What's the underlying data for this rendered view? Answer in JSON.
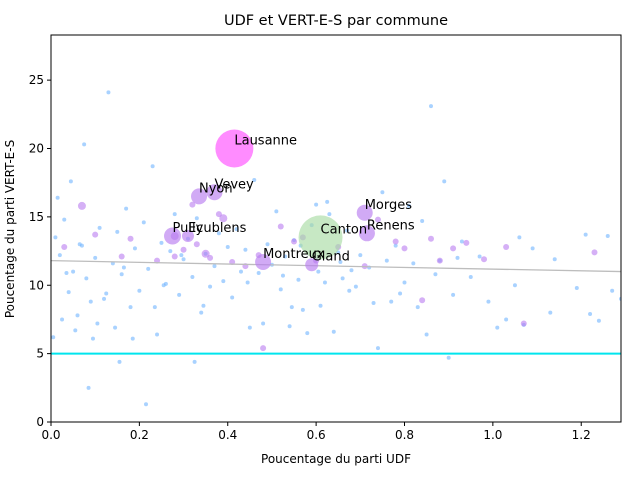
{
  "chart_data": {
    "type": "scatter",
    "title": "UDF et VERT-E-S par commune",
    "xlabel": "Poucentage du parti UDF",
    "ylabel": "Poucentage du parti VERT-E-S",
    "xlim": [
      0,
      1.29
    ],
    "ylim": [
      0,
      28.3
    ],
    "xticks": [
      0.0,
      0.2,
      0.4,
      0.6,
      0.8,
      1.0,
      1.2
    ],
    "xtick_labels": [
      "0.0",
      "0.2",
      "0.4",
      "0.6",
      "0.8",
      "1.0",
      "1.2"
    ],
    "yticks": [
      0,
      5,
      10,
      15,
      20,
      25
    ],
    "ytick_labels": [
      "0",
      "5",
      "10",
      "15",
      "20",
      "25"
    ],
    "grid": false,
    "legend": "none",
    "colors": {
      "small_points": "#6fb4ff",
      "medium_points": "#b97cf0",
      "large_points": "#ff66ff",
      "canton_point": "#a9dca4",
      "canton_label": "#008000",
      "reference_line": "#00e5ee",
      "trend_line": "#bdbdbd"
    },
    "reference_line_y": 5,
    "trend_line": [
      [
        0,
        11.8
      ],
      [
        1.29,
        11.0
      ]
    ],
    "annotations": [
      {
        "label": "Lausanne",
        "x": 0.415,
        "y": 20.0,
        "size": 34,
        "color": "large"
      },
      {
        "label": "Vevey",
        "x": 0.37,
        "y": 16.8,
        "size": 12,
        "color": "medium"
      },
      {
        "label": "Nyon",
        "x": 0.335,
        "y": 16.5,
        "size": 12,
        "color": "medium"
      },
      {
        "label": "Morges",
        "x": 0.71,
        "y": 15.3,
        "size": 12,
        "color": "medium"
      },
      {
        "label": "Renens",
        "x": 0.715,
        "y": 13.8,
        "size": 12,
        "color": "medium"
      },
      {
        "label": "Pully",
        "x": 0.275,
        "y": 13.6,
        "size": 13,
        "color": "medium"
      },
      {
        "label": "Ecublens",
        "x": 0.31,
        "y": 13.6,
        "size": 8,
        "color": "medium"
      },
      {
        "label": "Canton",
        "x": 0.61,
        "y": 13.5,
        "size": 40,
        "color": "canton",
        "label_color": "canton"
      },
      {
        "label": "Montreux",
        "x": 0.48,
        "y": 11.7,
        "size": 12,
        "color": "medium"
      },
      {
        "label": "Gland",
        "x": 0.59,
        "y": 11.5,
        "size": 9,
        "color": "medium"
      }
    ],
    "points": [
      [
        0.01,
        13.5,
        2
      ],
      [
        0.02,
        12.2,
        2
      ],
      [
        0.03,
        14.8,
        2
      ],
      [
        0.04,
        9.5,
        2
      ],
      [
        0.05,
        11.0,
        2
      ],
      [
        0.06,
        7.8,
        2
      ],
      [
        0.07,
        12.9,
        2
      ],
      [
        0.08,
        10.5,
        2
      ],
      [
        0.09,
        8.8,
        2
      ],
      [
        0.1,
        12.0,
        2
      ],
      [
        0.11,
        14.2,
        2
      ],
      [
        0.12,
        9.0,
        2
      ],
      [
        0.13,
        24.1,
        2
      ],
      [
        0.14,
        11.6,
        2
      ],
      [
        0.15,
        13.9,
        2
      ],
      [
        0.16,
        10.8,
        2
      ],
      [
        0.17,
        15.6,
        2
      ],
      [
        0.18,
        8.4,
        2
      ],
      [
        0.19,
        12.7,
        2
      ],
      [
        0.2,
        9.6,
        2
      ],
      [
        0.21,
        14.6,
        2
      ],
      [
        0.22,
        11.2,
        2
      ],
      [
        0.23,
        18.7,
        2
      ],
      [
        0.24,
        6.4,
        2
      ],
      [
        0.25,
        13.1,
        2
      ],
      [
        0.26,
        10.1,
        2
      ],
      [
        0.27,
        12.5,
        2
      ],
      [
        0.28,
        15.2,
        2
      ],
      [
        0.29,
        9.3,
        2
      ],
      [
        0.3,
        11.9,
        2
      ],
      [
        0.31,
        13.4,
        2
      ],
      [
        0.32,
        10.6,
        2
      ],
      [
        0.33,
        14.9,
        2
      ],
      [
        0.34,
        8.0,
        2
      ],
      [
        0.35,
        12.3,
        2
      ],
      [
        0.36,
        9.9,
        2
      ],
      [
        0.37,
        11.4,
        2
      ],
      [
        0.38,
        13.8,
        2
      ],
      [
        0.39,
        10.3,
        2
      ],
      [
        0.4,
        12.8,
        2
      ],
      [
        0.41,
        9.1,
        2
      ],
      [
        0.42,
        14.1,
        2
      ],
      [
        0.43,
        11.0,
        2
      ],
      [
        0.44,
        12.6,
        2
      ],
      [
        0.45,
        6.9,
        2
      ],
      [
        0.46,
        17.7,
        2
      ],
      [
        0.47,
        10.9,
        2
      ],
      [
        0.48,
        7.2,
        2
      ],
      [
        0.49,
        13.0,
        2
      ],
      [
        0.5,
        11.5,
        2
      ],
      [
        0.51,
        15.4,
        2
      ],
      [
        0.52,
        9.7,
        2
      ],
      [
        0.53,
        12.1,
        2
      ],
      [
        0.54,
        7.0,
        2
      ],
      [
        0.55,
        13.3,
        2
      ],
      [
        0.56,
        10.4,
        2
      ],
      [
        0.57,
        8.2,
        2
      ],
      [
        0.58,
        6.5,
        2
      ],
      [
        0.59,
        14.4,
        2
      ],
      [
        0.6,
        15.9,
        2
      ],
      [
        0.61,
        8.5,
        2
      ],
      [
        0.62,
        10.2,
        2
      ],
      [
        0.63,
        15.2,
        2
      ],
      [
        0.64,
        6.6,
        2
      ],
      [
        0.65,
        12.4,
        2
      ],
      [
        0.66,
        10.5,
        2
      ],
      [
        0.67,
        14.0,
        2
      ],
      [
        0.68,
        11.1,
        2
      ],
      [
        0.69,
        9.9,
        2
      ],
      [
        0.7,
        12.2,
        2
      ],
      [
        0.72,
        11.3,
        2
      ],
      [
        0.73,
        8.7,
        2
      ],
      [
        0.74,
        5.4,
        2
      ],
      [
        0.75,
        16.8,
        2
      ],
      [
        0.76,
        11.8,
        2
      ],
      [
        0.77,
        8.8,
        2
      ],
      [
        0.78,
        12.9,
        2
      ],
      [
        0.79,
        9.4,
        2
      ],
      [
        0.8,
        10.2,
        2
      ],
      [
        0.81,
        15.8,
        2
      ],
      [
        0.82,
        11.6,
        2
      ],
      [
        0.83,
        8.4,
        2
      ],
      [
        0.84,
        14.7,
        2
      ],
      [
        0.85,
        6.4,
        2
      ],
      [
        0.86,
        23.1,
        2
      ],
      [
        0.87,
        10.8,
        2
      ],
      [
        0.88,
        11.8,
        2
      ],
      [
        0.89,
        17.6,
        2
      ],
      [
        0.9,
        4.7,
        2
      ],
      [
        0.91,
        9.3,
        2
      ],
      [
        0.92,
        12.0,
        2
      ],
      [
        0.93,
        13.2,
        2
      ],
      [
        0.95,
        10.6,
        2
      ],
      [
        0.97,
        12.1,
        2
      ],
      [
        0.99,
        8.8,
        2
      ],
      [
        1.01,
        6.9,
        2
      ],
      [
        1.03,
        7.5,
        2
      ],
      [
        1.05,
        10.0,
        2
      ],
      [
        1.06,
        13.5,
        2
      ],
      [
        1.07,
        7.1,
        2
      ],
      [
        1.09,
        12.7,
        2
      ],
      [
        1.13,
        8.0,
        2
      ],
      [
        1.14,
        11.9,
        2
      ],
      [
        1.19,
        9.8,
        2
      ],
      [
        1.21,
        13.7,
        2
      ],
      [
        1.22,
        7.9,
        2
      ],
      [
        1.24,
        7.4,
        2
      ],
      [
        1.26,
        13.6,
        2
      ],
      [
        1.27,
        9.6,
        2
      ],
      [
        1.29,
        9.0,
        2
      ],
      [
        0.005,
        6.2,
        2
      ],
      [
        0.015,
        16.4,
        2
      ],
      [
        0.025,
        7.5,
        2
      ],
      [
        0.035,
        10.9,
        2
      ],
      [
        0.045,
        17.6,
        2
      ],
      [
        0.055,
        6.7,
        2
      ],
      [
        0.065,
        13.0,
        2
      ],
      [
        0.075,
        20.3,
        2
      ],
      [
        0.085,
        2.5,
        2
      ],
      [
        0.095,
        6.1,
        2
      ],
      [
        0.105,
        7.2,
        2
      ],
      [
        0.125,
        9.4,
        2
      ],
      [
        0.145,
        6.9,
        2
      ],
      [
        0.155,
        4.4,
        2
      ],
      [
        0.165,
        11.3,
        2
      ],
      [
        0.185,
        6.1,
        2
      ],
      [
        0.215,
        1.3,
        2
      ],
      [
        0.235,
        8.4,
        2
      ],
      [
        0.255,
        10.0,
        2
      ],
      [
        0.295,
        12.2,
        2
      ],
      [
        0.325,
        4.4,
        2
      ],
      [
        0.345,
        8.5,
        2
      ],
      [
        0.445,
        10.2,
        2
      ],
      [
        0.525,
        10.7,
        2
      ],
      [
        0.545,
        8.4,
        2
      ],
      [
        0.565,
        12.9,
        2
      ],
      [
        0.605,
        11.0,
        2
      ],
      [
        0.625,
        16.1,
        2
      ],
      [
        0.655,
        11.7,
        2
      ],
      [
        0.675,
        9.6,
        2
      ],
      [
        0.03,
        12.8,
        3
      ],
      [
        0.07,
        15.8,
        4
      ],
      [
        0.1,
        13.7,
        3
      ],
      [
        0.16,
        12.1,
        3
      ],
      [
        0.18,
        13.4,
        3
      ],
      [
        0.24,
        11.8,
        3
      ],
      [
        0.28,
        12.1,
        3
      ],
      [
        0.3,
        12.6,
        3
      ],
      [
        0.33,
        13.0,
        3
      ],
      [
        0.36,
        12.0,
        3
      ],
      [
        0.38,
        15.2,
        3
      ],
      [
        0.41,
        11.7,
        3
      ],
      [
        0.44,
        11.4,
        3
      ],
      [
        0.47,
        12.2,
        3
      ],
      [
        0.52,
        14.3,
        3
      ],
      [
        0.55,
        13.2,
        3
      ],
      [
        0.57,
        13.5,
        3
      ],
      [
        0.6,
        11.8,
        3
      ],
      [
        0.65,
        12.8,
        3
      ],
      [
        0.71,
        11.4,
        3
      ],
      [
        0.74,
        14.8,
        3
      ],
      [
        0.78,
        13.2,
        3
      ],
      [
        0.8,
        12.7,
        3
      ],
      [
        0.84,
        8.9,
        3
      ],
      [
        0.86,
        13.4,
        3
      ],
      [
        0.88,
        11.8,
        3
      ],
      [
        0.91,
        12.7,
        3
      ],
      [
        0.94,
        13.1,
        3
      ],
      [
        0.98,
        11.9,
        3
      ],
      [
        1.03,
        12.8,
        3
      ],
      [
        1.07,
        7.2,
        3
      ],
      [
        1.23,
        12.4,
        3
      ],
      [
        0.48,
        5.4,
        3
      ],
      [
        0.32,
        15.9,
        3
      ],
      [
        0.39,
        14.9,
        4
      ],
      [
        0.35,
        12.3,
        4
      ],
      [
        0.28,
        13.6,
        4
      ]
    ]
  }
}
